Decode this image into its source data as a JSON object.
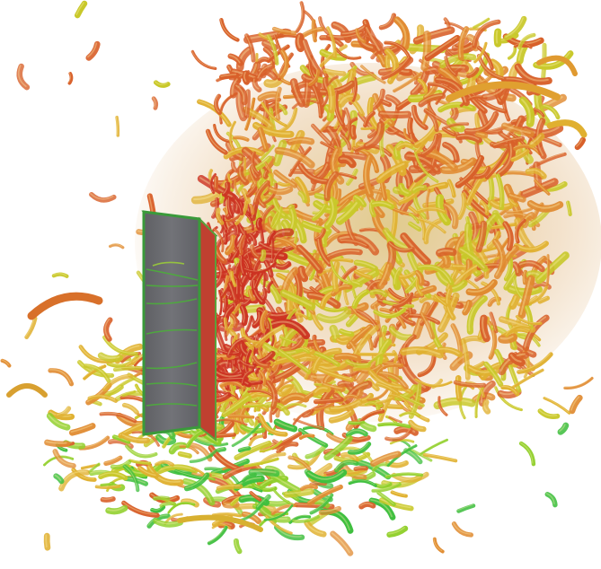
{
  "scene": {
    "subject": "vortex-structure-isosurface",
    "background_color": "#ffffff",
    "building_color": "#6e6e72",
    "building_edge_color": "#3a8a3a",
    "palette": [
      "#3fbf3f",
      "#8fcf2a",
      "#c8c82a",
      "#e0b030",
      "#e08a30",
      "#d8602a",
      "#cc3322"
    ]
  }
}
